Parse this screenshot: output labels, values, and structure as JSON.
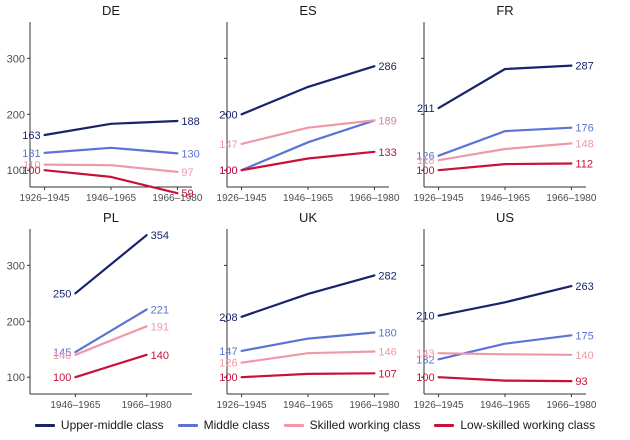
{
  "chart_data": {
    "type": "line",
    "layout": "small-multiples",
    "colors": {
      "Upper-middle class": "#17246b",
      "Middle class": "#5b73d6",
      "Skilled working class": "#ef98a8",
      "Low-skilled working class": "#c8103a"
    },
    "y_ticks": [
      100,
      200,
      300
    ],
    "ylim": [
      70,
      365
    ],
    "grid": false,
    "legend_position": "bottom",
    "legend": [
      "Upper-middle class",
      "Middle class",
      "Skilled working class",
      "Low-skilled working class"
    ],
    "panels": [
      {
        "title": "DE",
        "categories": [
          "1926–1945",
          "1946–1965",
          "1966–1980"
        ],
        "series": [
          {
            "name": "Upper-middle class",
            "values": [
              163,
              183,
              188
            ],
            "labels": {
              "first": "163",
              "last": "188"
            }
          },
          {
            "name": "Middle class",
            "values": [
              131,
              140,
              130
            ],
            "labels": {
              "first": "131",
              "last": "130"
            }
          },
          {
            "name": "Skilled working class",
            "values": [
              110,
              109,
              97
            ],
            "labels": {
              "first": "110",
              "last": "97"
            }
          },
          {
            "name": "Low-skilled working class",
            "values": [
              100,
              88,
              59
            ],
            "labels": {
              "first": "100",
              "last": "59"
            }
          }
        ]
      },
      {
        "title": "ES",
        "categories": [
          "1926–1945",
          "1946–1965",
          "1966–1980"
        ],
        "series": [
          {
            "name": "Upper-middle class",
            "values": [
              200,
              249,
              286
            ],
            "labels": {
              "first": "200",
              "last": "286"
            }
          },
          {
            "name": "Middle class",
            "values": [
              100,
              150,
              189
            ],
            "labels": {
              "first": "100",
              "last": "189"
            }
          },
          {
            "name": "Skilled working class",
            "values": [
              147,
              176,
              189
            ],
            "labels": {
              "first": "147",
              "last": "189"
            }
          },
          {
            "name": "Low-skilled working class",
            "values": [
              100,
              121,
              133
            ],
            "labels": {
              "first": "100",
              "last": "133"
            }
          }
        ]
      },
      {
        "title": "FR",
        "categories": [
          "1926–1945",
          "1946–1965",
          "1966–1980"
        ],
        "series": [
          {
            "name": "Upper-middle class",
            "values": [
              211,
              281,
              287
            ],
            "labels": {
              "first": "211",
              "last": "287"
            }
          },
          {
            "name": "Middle class",
            "values": [
              126,
              170,
              176
            ],
            "labels": {
              "first": "126",
              "last": "176"
            }
          },
          {
            "name": "Skilled working class",
            "values": [
              118,
              138,
              148
            ],
            "labels": {
              "first": "118",
              "last": "148"
            }
          },
          {
            "name": "Low-skilled working class",
            "values": [
              100,
              111,
              112
            ],
            "labels": {
              "first": "100",
              "last": "112"
            }
          }
        ]
      },
      {
        "title": "PL",
        "categories": [
          "1946–1965",
          "1966–1980"
        ],
        "series": [
          {
            "name": "Upper-middle class",
            "values": [
              250,
              354
            ],
            "labels": {
              "first": "250",
              "last": "354"
            }
          },
          {
            "name": "Middle class",
            "values": [
              145,
              221
            ],
            "labels": {
              "first": "145",
              "last": "221"
            }
          },
          {
            "name": "Skilled working class",
            "values": [
              140,
              191
            ],
            "labels": {
              "first": "140",
              "last": "191"
            }
          },
          {
            "name": "Low-skilled working class",
            "values": [
              100,
              140
            ],
            "labels": {
              "first": "100",
              "last": "140"
            }
          }
        ]
      },
      {
        "title": "UK",
        "categories": [
          "1926–1945",
          "1946–1965",
          "1966–1980"
        ],
        "series": [
          {
            "name": "Upper-middle class",
            "values": [
              208,
              249,
              282
            ],
            "labels": {
              "first": "208",
              "last": "282"
            }
          },
          {
            "name": "Middle class",
            "values": [
              147,
              169,
              180
            ],
            "labels": {
              "first": "147",
              "last": "180"
            }
          },
          {
            "name": "Skilled working class",
            "values": [
              126,
              143,
              146
            ],
            "labels": {
              "first": "126",
              "last": "146"
            }
          },
          {
            "name": "Low-skilled working class",
            "values": [
              100,
              106,
              107
            ],
            "labels": {
              "first": "100",
              "last": "107"
            }
          }
        ]
      },
      {
        "title": "US",
        "categories": [
          "1926–1945",
          "1946–1965",
          "1966–1980"
        ],
        "series": [
          {
            "name": "Upper-middle class",
            "values": [
              210,
              234,
              263
            ],
            "labels": {
              "first": "210",
              "last": "263"
            }
          },
          {
            "name": "Middle class",
            "values": [
              132,
              160,
              175
            ],
            "labels": {
              "first": "132",
              "last": "175"
            }
          },
          {
            "name": "Skilled working class",
            "values": [
              143,
              141,
              140
            ],
            "labels": {
              "first": "143",
              "last": "140"
            }
          },
          {
            "name": "Low-skilled working class",
            "values": [
              100,
              94,
              93
            ],
            "labels": {
              "first": "100",
              "last": "93"
            }
          }
        ]
      }
    ]
  }
}
